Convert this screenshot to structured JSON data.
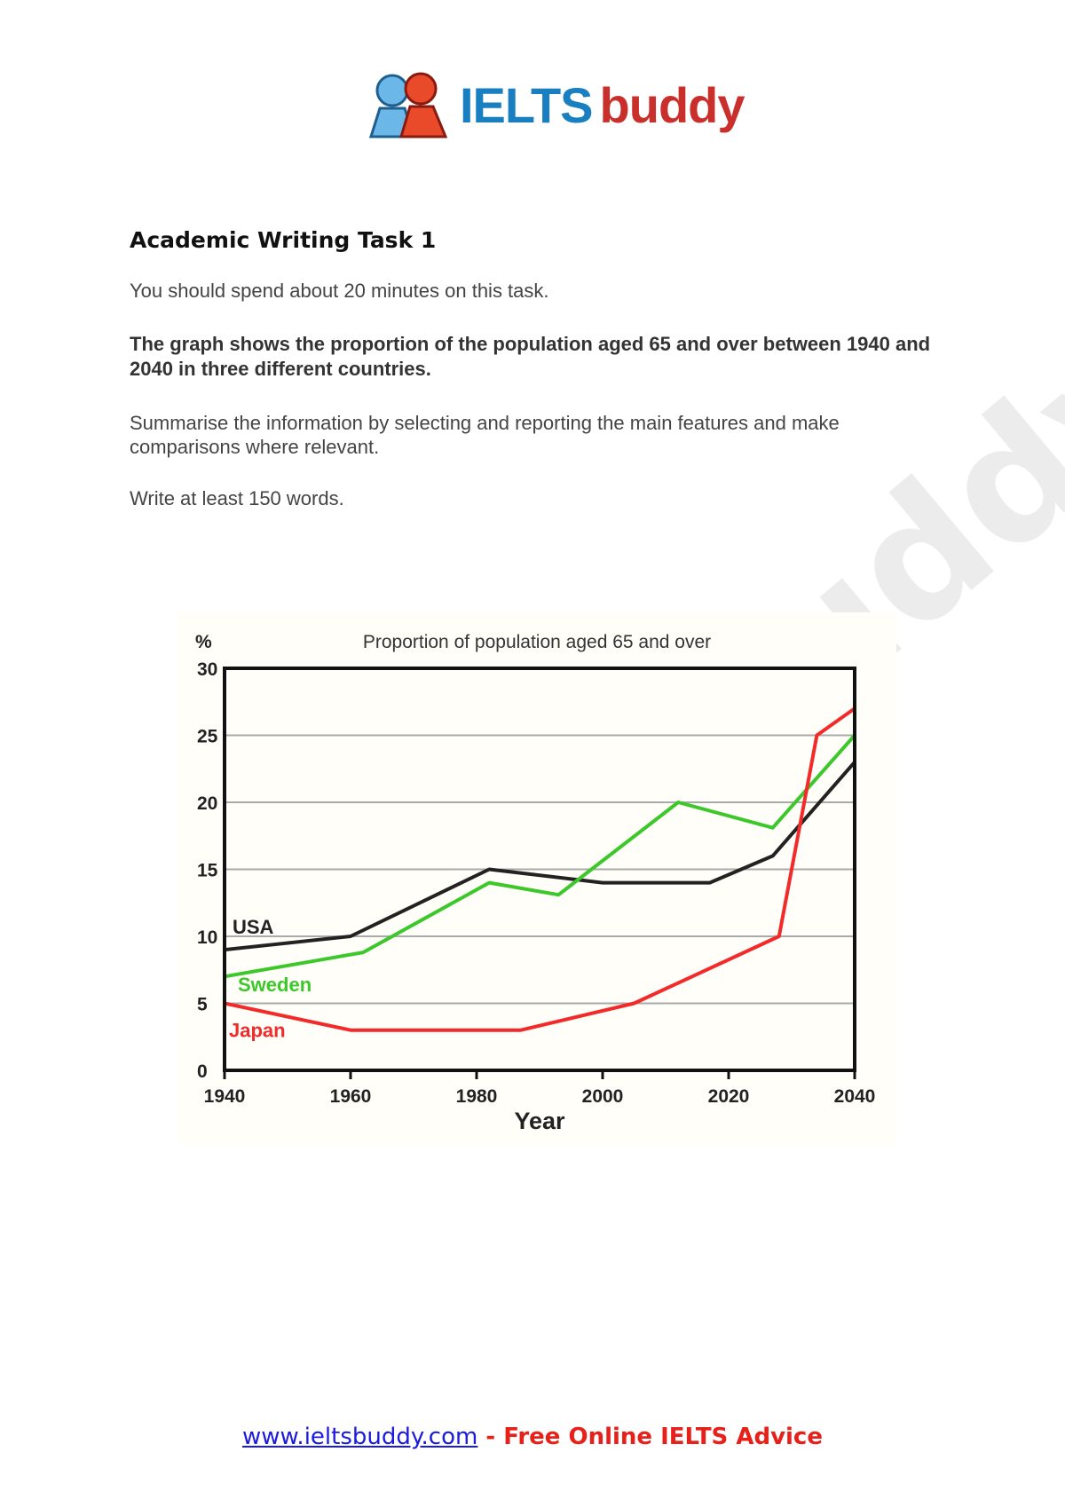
{
  "logo": {
    "text1": "IELTS",
    "text2": "buddy"
  },
  "watermark": "buddy",
  "heading": "Academic Writing Task 1",
  "instructions": {
    "time": "You should spend about 20 minutes on this task.",
    "prompt": "The graph shows the proportion of the population aged 65 and over between 1940 and 2040 in three different countries.",
    "summarise": "Summarise the information by selecting and reporting the main features and make comparisons where relevant.",
    "words": "Write at least 150 words."
  },
  "chart_data": {
    "type": "line",
    "title": "Proportion of population aged 65 and over",
    "xlabel": "Year",
    "ylabel": "%",
    "xlim": [
      1940,
      2040
    ],
    "ylim": [
      0,
      30
    ],
    "xticks": [
      1940,
      1960,
      1980,
      2000,
      2020,
      2040
    ],
    "yticks": [
      0,
      5,
      10,
      15,
      20,
      25,
      30
    ],
    "grid": "horizontal",
    "series": [
      {
        "name": "USA",
        "color": "#222222",
        "points": [
          [
            1940,
            9
          ],
          [
            1960,
            10
          ],
          [
            1982,
            15
          ],
          [
            2000,
            14
          ],
          [
            2017,
            14
          ],
          [
            2027,
            16
          ],
          [
            2040,
            23
          ]
        ]
      },
      {
        "name": "Sweden",
        "color": "#3cc82a",
        "points": [
          [
            1940,
            7
          ],
          [
            1962,
            8.8
          ],
          [
            1982,
            14
          ],
          [
            1993,
            13.1
          ],
          [
            2012,
            20
          ],
          [
            2027,
            18.1
          ],
          [
            2040,
            25
          ]
        ]
      },
      {
        "name": "Japan",
        "color": "#f22a2a",
        "points": [
          [
            1940,
            5
          ],
          [
            1960,
            3
          ],
          [
            1987,
            3
          ],
          [
            2005,
            5
          ],
          [
            2028,
            10
          ],
          [
            2034,
            25
          ],
          [
            2040,
            27
          ]
        ]
      }
    ]
  },
  "footer": {
    "link": "www.ieltsbuddy.com",
    "sep": " - ",
    "tagline": "Free Online IELTS Advice"
  }
}
